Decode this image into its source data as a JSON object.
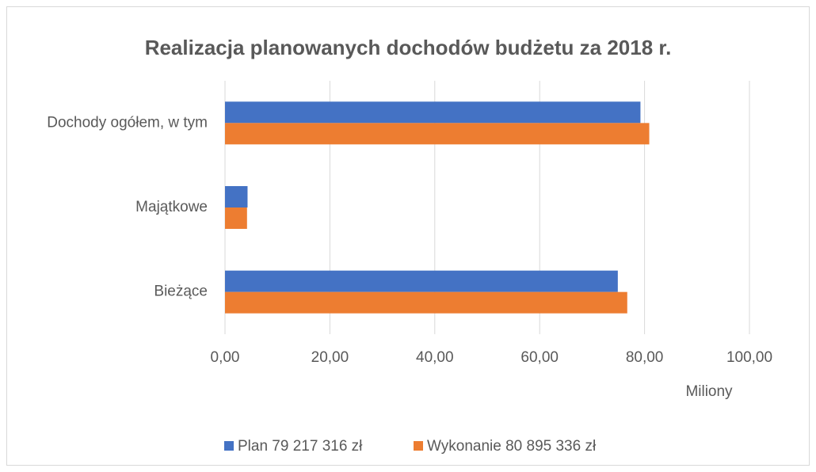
{
  "chart_data": {
    "type": "hbar",
    "title": "Realizacja planowanych dochodów budżetu za 2018 r.",
    "x_label": "Miliony",
    "categories": [
      "Dochody ogółem, w tym",
      "Majątkowe",
      "Bieżące"
    ],
    "series": [
      {
        "name": "Plan 79 217 316 zł",
        "color": "#4472c4",
        "values": [
          79.217316,
          4.3,
          74.9
        ]
      },
      {
        "name": "Wykonanie 80 895 336 zł",
        "color": "#ed7d31",
        "values": [
          80.895336,
          4.2,
          76.7
        ]
      }
    ],
    "xlim": [
      0,
      100
    ],
    "xticks": [
      {
        "value": 0,
        "label": "0,00"
      },
      {
        "value": 20,
        "label": "20,00"
      },
      {
        "value": 40,
        "label": "40,00"
      },
      {
        "value": 60,
        "label": "60,00"
      },
      {
        "value": 80,
        "label": "80,00"
      },
      {
        "value": 100,
        "label": "100,00"
      }
    ],
    "grid": true,
    "legend": "bottom"
  }
}
